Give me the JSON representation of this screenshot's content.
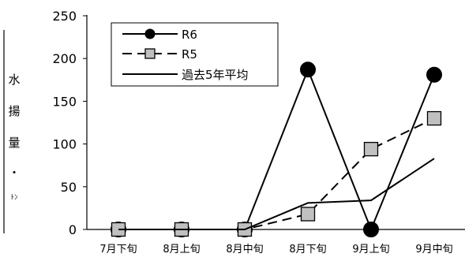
{
  "chart_data": {
    "type": "line",
    "title": "",
    "xlabel": "",
    "ylabel_chars": [
      "水",
      "揚",
      "量",
      "・",
      "ﾄﾝ"
    ],
    "categories": [
      "7月下旬",
      "8月上旬",
      "8月中旬",
      "8月下旬",
      "9月上旬",
      "9月中旬"
    ],
    "ylim": [
      0,
      250
    ],
    "yticks": [
      0,
      50,
      100,
      150,
      200,
      250
    ],
    "grid": false,
    "legend_position": "top-left",
    "series": [
      {
        "name": "R6",
        "marker": "circle",
        "line": "solid",
        "color": "#000000",
        "fill": "#000000",
        "values": [
          0,
          0,
          0,
          187,
          0,
          181
        ]
      },
      {
        "name": "R5",
        "marker": "square",
        "line": "dashed",
        "color": "#000000",
        "fill": "#c0c0c0",
        "values": [
          0,
          0,
          0,
          18,
          94,
          130
        ]
      },
      {
        "name": "過去5年平均",
        "marker": "star",
        "line": "solid",
        "color": "#000000",
        "fill": "none",
        "values": [
          0,
          0,
          0,
          31,
          34,
          83
        ]
      }
    ]
  }
}
